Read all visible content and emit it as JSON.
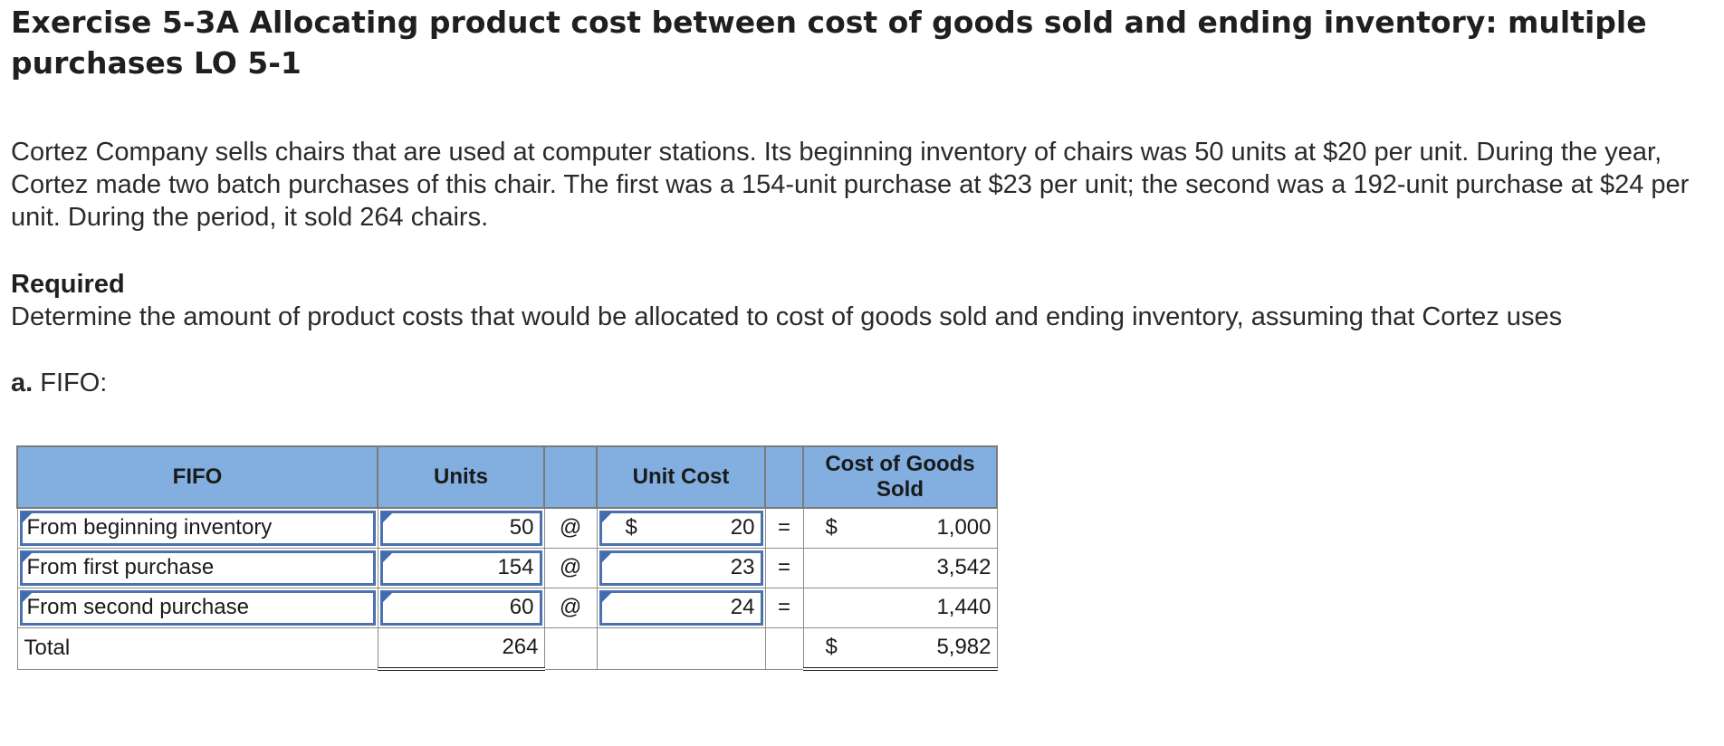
{
  "header": {
    "title": "Exercise 5-3A Allocating product cost between cost of goods sold and ending inventory: multiple purchases LO 5-1"
  },
  "problem": {
    "description": "Cortez Company sells chairs that are used at computer stations. Its beginning inventory of chairs was 50 units at $20 per unit. During the year, Cortez made two batch purchases of this chair. The first was a 154-unit purchase at $23 per unit; the second was a 192-unit purchase at $24 per unit. During the period, it sold 264 chairs.",
    "required_label": "Required",
    "instruction": "Determine the amount of product costs that would be allocated to cost of goods sold and ending inventory, assuming that Cortez uses",
    "part_letter": "a.",
    "part_name": "FIFO:"
  },
  "table": {
    "headers": {
      "label": "FIFO",
      "units": "Units",
      "unit_cost": "Unit Cost",
      "cogs": "Cost of Goods Sold"
    },
    "symbols": {
      "at": "@",
      "equals": "=",
      "dollar": "$"
    },
    "rows": [
      {
        "label": "From beginning inventory",
        "units": "50",
        "unit_cost": "20",
        "cogs": "1,000"
      },
      {
        "label": "From first purchase",
        "units": "154",
        "unit_cost": "23",
        "cogs": "3,542"
      },
      {
        "label": "From second purchase",
        "units": "60",
        "unit_cost": "24",
        "cogs": "1,440"
      }
    ],
    "total": {
      "label": "Total",
      "units": "264",
      "cogs": "5,982"
    }
  },
  "colors": {
    "header_fill": "#82aee0",
    "input_border": "#4b72ad",
    "input_marker": "#3d6cb0"
  }
}
